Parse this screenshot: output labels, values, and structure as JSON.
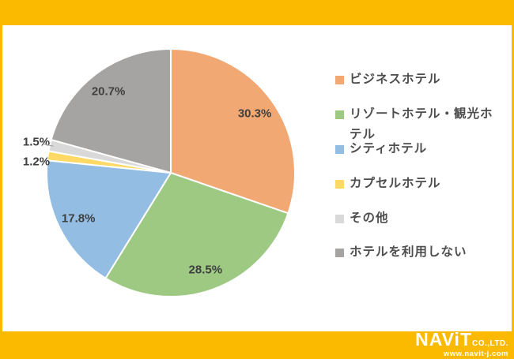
{
  "page": {
    "frame_color": "#FBBA00",
    "background": "#FFFFFF"
  },
  "chart_data": {
    "type": "pie",
    "categories": [
      "ビジネスホテル",
      "リゾートホテル・観光ホテル",
      "シティホテル",
      "カプセルホテル",
      "その他",
      "ホテルを利用しない"
    ],
    "values": [
      30.3,
      28.5,
      17.8,
      1.2,
      1.5,
      20.7
    ],
    "labels": [
      "30.3%",
      "28.5%",
      "17.8%",
      "1.2%",
      "1.5%",
      "20.7%"
    ],
    "colors": [
      "#F2A872",
      "#9DC983",
      "#94BDE3",
      "#FFD965",
      "#D9D9D9",
      "#A6A4A2"
    ],
    "title": "",
    "legend_position": "right",
    "start_angle_deg": 0,
    "direction": "clockwise",
    "label_text_color": "#3F3F3F",
    "outside_label_threshold_pct": 5,
    "leader_line_categories": [
      "その他"
    ]
  },
  "footer": {
    "logo_name": "NAViT",
    "logo_suffix": "CO.,LTD.",
    "logo_url": "www.navit-j.com"
  }
}
